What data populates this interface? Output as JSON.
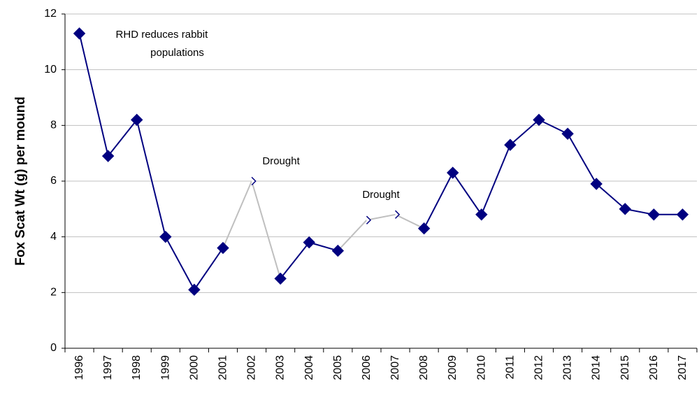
{
  "chart_data": {
    "type": "line",
    "y_label": "Fox Scat Wt (g) per mound",
    "categories": [
      "1996",
      "1997",
      "1998",
      "1999",
      "2000",
      "2001",
      "2002",
      "2003",
      "2004",
      "2005",
      "2006",
      "2007",
      "2008",
      "2009",
      "2010",
      "2011",
      "2012",
      "2013",
      "2014",
      "2015",
      "2016",
      "2017"
    ],
    "series": [
      {
        "color": "#000080",
        "highlight_color": "#bfbfbf",
        "values": [
          11.3,
          6.9,
          8.2,
          4.0,
          2.1,
          3.6,
          6.0,
          2.5,
          3.8,
          3.5,
          4.6,
          4.8,
          4.3,
          6.3,
          4.8,
          7.3,
          8.2,
          7.7,
          5.9,
          5.0,
          4.8,
          4.8
        ]
      }
    ],
    "annotations": [
      {
        "lines": [
          "RHD reduces rabbit",
          "populations"
        ],
        "categories": [
          "1996"
        ],
        "highlight": false
      },
      {
        "lines": [
          "Drought"
        ],
        "categories": [
          "2002"
        ],
        "highlight": true
      },
      {
        "lines": [
          "Drought"
        ],
        "categories": [
          "2006",
          "2007"
        ],
        "highlight": true
      }
    ],
    "ylim": [
      0,
      12
    ],
    "yticks": [
      0,
      2,
      4,
      6,
      8,
      10,
      12
    ],
    "grid": true
  }
}
